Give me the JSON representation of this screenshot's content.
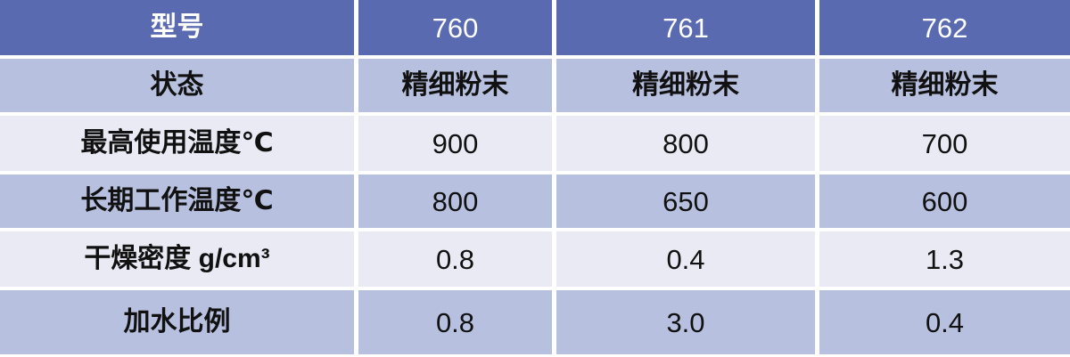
{
  "chart_data": {
    "type": "table",
    "title": "",
    "columns": [
      "型号",
      "760",
      "761",
      "762"
    ],
    "rows": [
      [
        "状态",
        "精细粉末",
        "精细粉末",
        "精细粉末"
      ],
      [
        "最高使用温度℃",
        "900",
        "800",
        "700"
      ],
      [
        "长期工作温度℃",
        "800",
        "650",
        "600"
      ],
      [
        "干燥密度 g/cm³",
        "0.8",
        "0.4",
        "1.3"
      ],
      [
        "加水比例",
        "0.8",
        "3.0",
        "0.4"
      ]
    ]
  },
  "colors": {
    "header_bg": "#5a6ab0",
    "header_text": "#ffffff",
    "row_periwinkle_bg": "#b7c0df",
    "row_light_bg": "#e9eaf4",
    "body_text": "#111111",
    "grid_divider": "#ffffff"
  }
}
